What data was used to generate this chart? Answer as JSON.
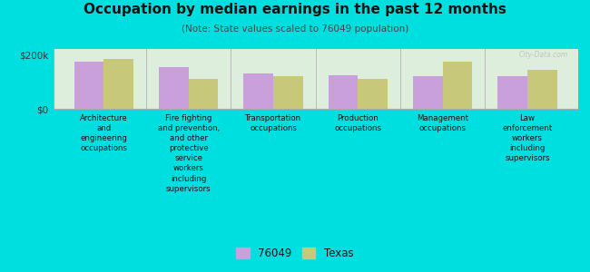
{
  "title": "Occupation by median earnings in the past 12 months",
  "subtitle": "(Note: State values scaled to 76049 population)",
  "categories": [
    "Architecture\nand\nengineering\noccupations",
    "Fire fighting\nand prevention,\nand other\nprotective\nservice\nworkers\nincluding\nsupervisors",
    "Transportation\noccupations",
    "Production\noccupations",
    "Management\noccupations",
    "Law\nenforcement\nworkers\nincluding\nsupervisors"
  ],
  "values_76049": [
    175000,
    155000,
    130000,
    125000,
    120000,
    120000
  ],
  "values_texas": [
    185000,
    110000,
    120000,
    110000,
    175000,
    145000
  ],
  "color_76049": "#c9a0dc",
  "color_texas": "#c8c87a",
  "ylim": [
    0,
    220000
  ],
  "yticks": [
    0,
    200000
  ],
  "ytick_labels": [
    "$0",
    "$200k"
  ],
  "background_color": "#ddeedd",
  "outer_background": "#00dfdf",
  "legend_label_76049": "76049",
  "legend_label_texas": "Texas",
  "watermark": "City-Data.com"
}
